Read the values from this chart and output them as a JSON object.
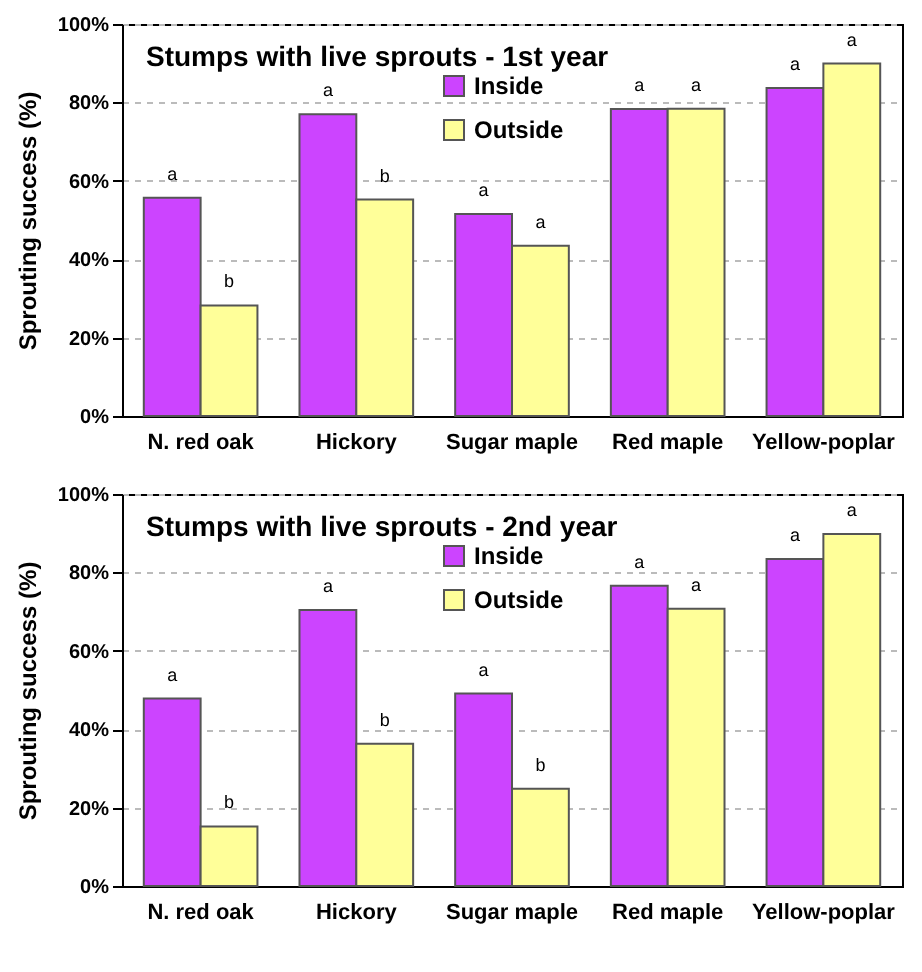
{
  "chart_data": [
    {
      "type": "bar",
      "title": "Stumps with live sprouts - 1st year",
      "ylabel": "Sprouting success (%)",
      "categories": [
        "N. red oak",
        "Hickory",
        "Sugar maple",
        "Red maple",
        "Yellow-poplar"
      ],
      "series": [
        {
          "name": "Inside",
          "color": "#cc44ff",
          "values": [
            55.7,
            77.0,
            51.5,
            78.3,
            83.7
          ],
          "value_labels": [
            "a",
            "a",
            "a",
            "a",
            "a"
          ]
        },
        {
          "name": "Outside",
          "color": "#ffff99",
          "values": [
            28.2,
            55.2,
            43.4,
            78.4,
            89.9
          ],
          "value_labels": [
            "b",
            "b",
            "a",
            "a",
            "a"
          ]
        }
      ],
      "ylim": [
        0,
        100
      ],
      "yticks": [
        {
          "value": 0,
          "label": "0%"
        },
        {
          "value": 20,
          "label": "20%"
        },
        {
          "value": 40,
          "label": "40%"
        },
        {
          "value": 60,
          "label": "60%"
        },
        {
          "value": 80,
          "label": "80%"
        },
        {
          "value": 100,
          "label": "100%"
        }
      ],
      "grid": "y",
      "legend": "top"
    },
    {
      "type": "bar",
      "title": "Stumps with live sprouts - 2nd year",
      "ylabel": "Sprouting success (%)",
      "categories": [
        "N. red oak",
        "Hickory",
        "Sugar maple",
        "Red maple",
        "Yellow-poplar"
      ],
      "series": [
        {
          "name": "Inside",
          "color": "#cc44ff",
          "values": [
            47.8,
            70.4,
            49.1,
            76.6,
            83.4
          ],
          "value_labels": [
            "a",
            "a",
            "a",
            "a",
            "a"
          ]
        },
        {
          "name": "Outside",
          "color": "#ffff99",
          "values": [
            15.2,
            36.3,
            24.8,
            70.7,
            89.8
          ],
          "value_labels": [
            "b",
            "b",
            "b",
            "a",
            "a"
          ]
        }
      ],
      "ylim": [
        0,
        100
      ],
      "yticks": [
        {
          "value": 0,
          "label": "0%"
        },
        {
          "value": 20,
          "label": "20%"
        },
        {
          "value": 40,
          "label": "40%"
        },
        {
          "value": 60,
          "label": "60%"
        },
        {
          "value": 80,
          "label": "80%"
        },
        {
          "value": 100,
          "label": "100%"
        }
      ],
      "grid": "y",
      "legend": "top"
    }
  ]
}
